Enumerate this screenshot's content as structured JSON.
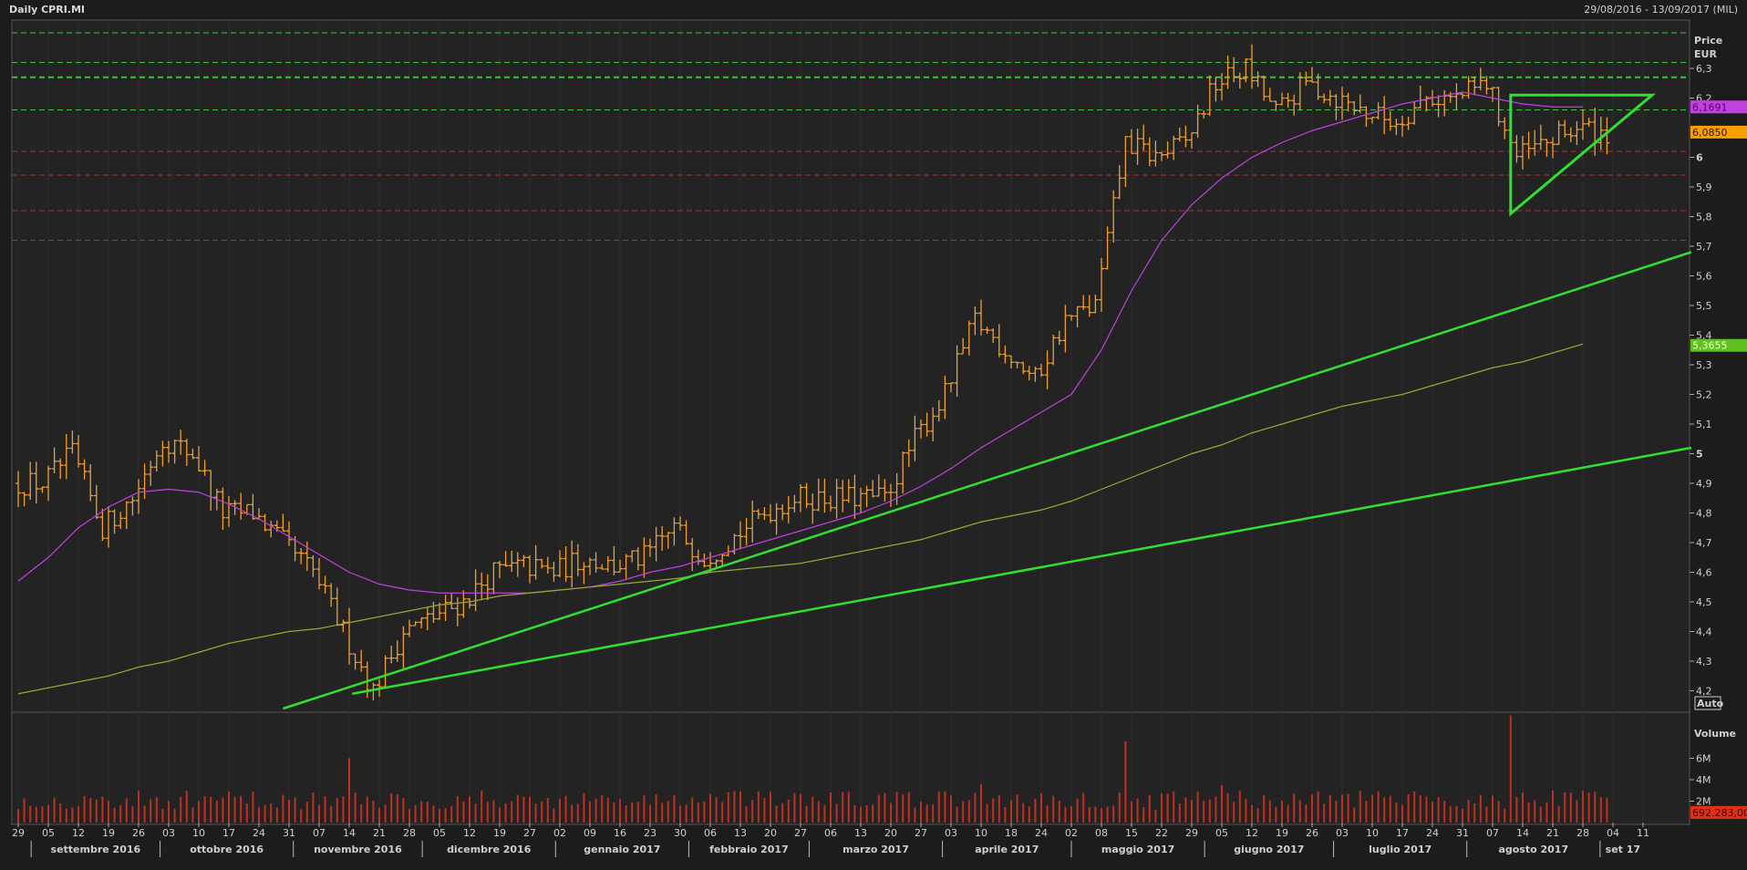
{
  "header": {
    "title": "Daily CPRI.MI",
    "range": "29/08/2016 - 13/09/2017 (MIL)"
  },
  "chart_data": {
    "type": "ohlc",
    "title": "Daily CPRI.MI",
    "price_axis": {
      "label_line1": "Price",
      "label_line2": "EUR",
      "ticks": [
        "6,3",
        "6,2",
        "6",
        "5,9",
        "5,8",
        "5,7",
        "5,6",
        "5,5",
        "5,4",
        "5,3",
        "5,2",
        "5,1",
        "5",
        "4,9",
        "4,8",
        "4,7",
        "4,6",
        "4,5",
        "4,4",
        "4,3",
        "4,2"
      ],
      "tick_values": [
        6.3,
        6.2,
        6.0,
        5.9,
        5.8,
        5.7,
        5.6,
        5.5,
        5.4,
        5.3,
        5.2,
        5.1,
        5.0,
        4.9,
        4.8,
        4.7,
        4.6,
        4.5,
        4.4,
        4.3,
        4.2
      ],
      "ylim": [
        4.17,
        6.46
      ],
      "auto_label": "Auto"
    },
    "volume_axis": {
      "label": "Volume",
      "ticks": [
        "6M",
        "4M",
        "2M"
      ],
      "tick_values": [
        6000000,
        4000000,
        2000000
      ]
    },
    "weekly_closes": [
      4.9,
      5.0,
      4.75,
      4.85,
      5.05,
      5.0,
      4.8,
      4.8,
      4.7,
      4.6,
      4.4,
      4.2,
      4.4,
      4.45,
      4.5,
      4.6,
      4.62,
      4.6,
      4.65,
      4.62,
      4.65,
      4.75,
      4.65,
      4.72,
      4.8,
      4.85,
      4.85,
      4.85,
      4.85,
      5.05,
      5.2,
      5.45,
      5.35,
      5.25,
      5.45,
      5.5,
      6.05,
      6.0,
      6.05,
      6.25,
      6.3,
      6.15,
      6.25,
      6.2,
      6.15,
      6.12,
      6.2,
      6.2,
      6.25,
      6.0,
      6.05,
      6.1,
      6.08
    ],
    "ma_fast": {
      "color": "#c040e0",
      "weekly": [
        4.57,
        4.65,
        4.75,
        4.82,
        4.87,
        4.88,
        4.87,
        4.83,
        4.78,
        4.72,
        4.66,
        4.6,
        4.56,
        4.54,
        4.53,
        4.53,
        4.53,
        4.53,
        4.54,
        4.55,
        4.57,
        4.6,
        4.62,
        4.65,
        4.68,
        4.71,
        4.74,
        4.77,
        4.8,
        4.84,
        4.89,
        4.95,
        5.02,
        5.08,
        5.14,
        5.2,
        5.35,
        5.55,
        5.72,
        5.84,
        5.93,
        6.0,
        6.05,
        6.09,
        6.12,
        6.15,
        6.18,
        6.2,
        6.22,
        6.2,
        6.18,
        6.17,
        6.17
      ],
      "last_label": "6,1691"
    },
    "ma_slow": {
      "color": "#98a830",
      "weekly": [
        4.19,
        4.21,
        4.23,
        4.25,
        4.28,
        4.3,
        4.33,
        4.36,
        4.38,
        4.4,
        4.41,
        4.43,
        4.45,
        4.47,
        4.49,
        4.5,
        4.52,
        4.53,
        4.54,
        4.55,
        4.56,
        4.57,
        4.58,
        4.6,
        4.61,
        4.62,
        4.63,
        4.65,
        4.67,
        4.69,
        4.71,
        4.74,
        4.77,
        4.79,
        4.81,
        4.84,
        4.88,
        4.92,
        4.96,
        5.0,
        5.03,
        5.07,
        5.1,
        5.13,
        5.16,
        5.18,
        5.2,
        5.23,
        5.26,
        5.29,
        5.31,
        5.34,
        5.37
      ],
      "last_label": "5,3655"
    },
    "last_price_label": "6,0850",
    "last_volume_label": "692.283,00",
    "levels_green": [
      6.42,
      6.32,
      6.27,
      6.16
    ],
    "levels_red": [
      6.02,
      5.94,
      5.82,
      5.72
    ],
    "trendlines": [
      [
        [
          44,
          4.14
        ],
        [
          278,
          5.68
        ]
      ],
      [
        [
          55.5,
          4.19
        ],
        [
          278,
          5.02
        ]
      ]
    ],
    "triangle": [
      [
        248,
        6.21
      ],
      [
        271.5,
        6.21
      ],
      [
        248,
        5.81
      ]
    ],
    "volume_spikes": [
      [
        55,
        6000000
      ],
      [
        184,
        7600000
      ],
      [
        248,
        10000000
      ],
      [
        200,
        3500000
      ],
      [
        160,
        3600000
      ]
    ],
    "date_ticks": [
      "29",
      "05",
      "12",
      "19",
      "26",
      "03",
      "10",
      "17",
      "24",
      "31",
      "07",
      "14",
      "21",
      "28",
      "05",
      "12",
      "19",
      "27",
      "02",
      "09",
      "16",
      "23",
      "30",
      "06",
      "13",
      "20",
      "27",
      "06",
      "13",
      "20",
      "27",
      "03",
      "10",
      "18",
      "24",
      "02",
      "08",
      "15",
      "22",
      "29",
      "05",
      "12",
      "19",
      "26",
      "03",
      "10",
      "17",
      "24",
      "31",
      "07",
      "14",
      "21",
      "28",
      "04",
      "11"
    ],
    "months": [
      {
        "label": "settembre 2016",
        "start": "2016-09-01"
      },
      {
        "label": "ottobre 2016",
        "start": "2016-10-01"
      },
      {
        "label": "novembre 2016",
        "start": "2016-11-01"
      },
      {
        "label": "dicembre 2016",
        "start": "2016-12-01"
      },
      {
        "label": "gennaio 2017",
        "start": "2017-01-01"
      },
      {
        "label": "febbraio 2017",
        "start": "2017-02-01"
      },
      {
        "label": "marzo 2017",
        "start": "2017-03-01"
      },
      {
        "label": "aprile 2017",
        "start": "2017-04-01"
      },
      {
        "label": "maggio 2017",
        "start": "2017-05-01"
      },
      {
        "label": "giugno 2017",
        "start": "2017-06-01"
      },
      {
        "label": "luglio 2017",
        "start": "2017-07-01"
      },
      {
        "label": "agosto 2017",
        "start": "2017-08-01"
      },
      {
        "label": "set 17",
        "start": "2017-09-01"
      }
    ],
    "first_date": "2016-08-29",
    "colors": {
      "bars": "#f0a030",
      "volume": "#c03020",
      "trend": "#30e030",
      "green_level": "#40c040",
      "red_level": "#b03030",
      "last_price": "#f7a000",
      "last_volume": "#e03010"
    }
  }
}
